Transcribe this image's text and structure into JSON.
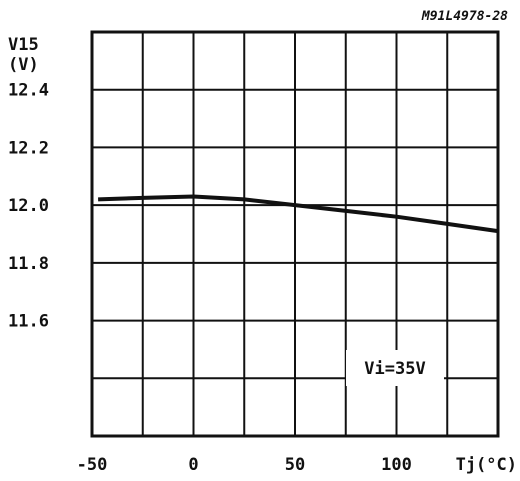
{
  "figure_code": "M91L4978-28",
  "chart_data": {
    "type": "line",
    "ylabel_lines": [
      "V15",
      "(V)"
    ],
    "xlabel": "Tj(°C)",
    "annotation": "Vi=35V",
    "x_ticks": [
      -50,
      0,
      50,
      100
    ],
    "x_tick_labels": [
      "-50",
      "0",
      "50",
      "100"
    ],
    "y_ticks": [
      11.6,
      11.8,
      12.0,
      12.2,
      12.4
    ],
    "y_tick_labels": [
      "11.6",
      "11.8",
      "12.0",
      "12.2",
      "12.4"
    ],
    "xlim": [
      -50,
      150
    ],
    "ylim": [
      11.2,
      12.6
    ],
    "grid": true,
    "series": [
      {
        "x": [
          -47,
          -25,
          0,
          25,
          50,
          75,
          100,
          125,
          150
        ],
        "y": [
          12.02,
          12.025,
          12.03,
          12.02,
          12.0,
          11.98,
          11.96,
          11.935,
          11.91
        ]
      }
    ]
  }
}
